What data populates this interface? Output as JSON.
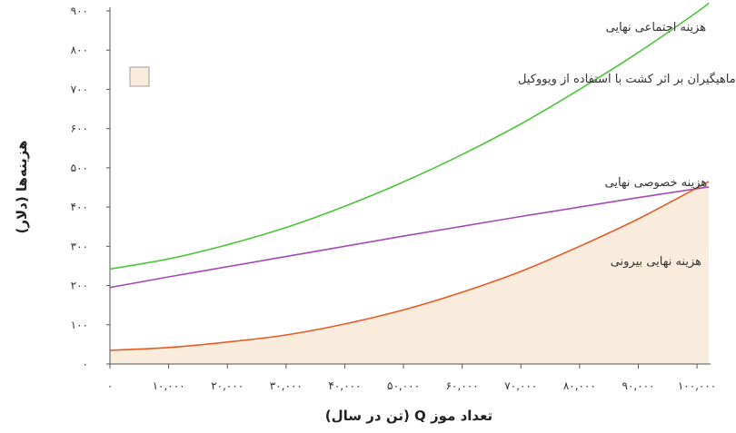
{
  "chart_data": {
    "type": "line",
    "xlabel": "تعداد موز Q (تن در سال)",
    "ylabel": "هزینه‌ها (دلار)",
    "xlim": [
      0,
      102000
    ],
    "ylim": [
      0,
      900
    ],
    "x_ticks": [
      0,
      10000,
      20000,
      30000,
      40000,
      50000,
      60000,
      70000,
      80000,
      90000,
      100000
    ],
    "x_tick_labels": [
      "۰",
      "۱۰,۰۰۰",
      "۲۰,۰۰۰",
      "۳۰,۰۰۰",
      "۴۰,۰۰۰",
      "۵۰,۰۰۰",
      "۶۰,۰۰۰",
      "۷۰,۰۰۰",
      "۸۰,۰۰۰",
      "۹۰,۰۰۰",
      "۱۰۰,۰۰۰"
    ],
    "y_ticks": [
      0,
      100,
      200,
      300,
      400,
      500,
      600,
      700,
      800,
      900
    ],
    "y_tick_labels": [
      "۰",
      "۱۰۰",
      "۲۰۰",
      "۳۰۰",
      "۴۰۰",
      "۵۰۰",
      "۶۰۰",
      "۷۰۰",
      "۸۰۰",
      "۹۰۰"
    ],
    "grid": false,
    "x": [
      0,
      10000,
      20000,
      30000,
      40000,
      50000,
      60000,
      70000,
      80000,
      90000,
      100000,
      102000
    ],
    "series": [
      {
        "name": "هزینه اجتماعی نهایی",
        "color": "#4cc43a",
        "values": [
          242,
          268,
          304,
          348,
          402,
          464,
          534,
          612,
          700,
          794,
          897,
          920
        ]
      },
      {
        "name": "هزینه خصوصی نهایی",
        "color": "#a24bb5",
        "values": [
          195,
          222,
          248,
          274,
          300,
          326,
          351,
          376,
          400,
          424,
          447,
          451
        ]
      },
      {
        "name": "هزینه نهایی بیرونی",
        "color": "#e65a24",
        "values": [
          35,
          42,
          56,
          74,
          102,
          138,
          183,
          236,
          300,
          370,
          449,
          465
        ]
      }
    ],
    "shaded_area": {
      "under_series": "هزینه نهایی بیرونی",
      "color": "#f9ecdc",
      "legend_label": "هزینه های تحمیل شده بر ماهیگیران بر اثر کشت با استفاده از ویووکیل"
    }
  }
}
